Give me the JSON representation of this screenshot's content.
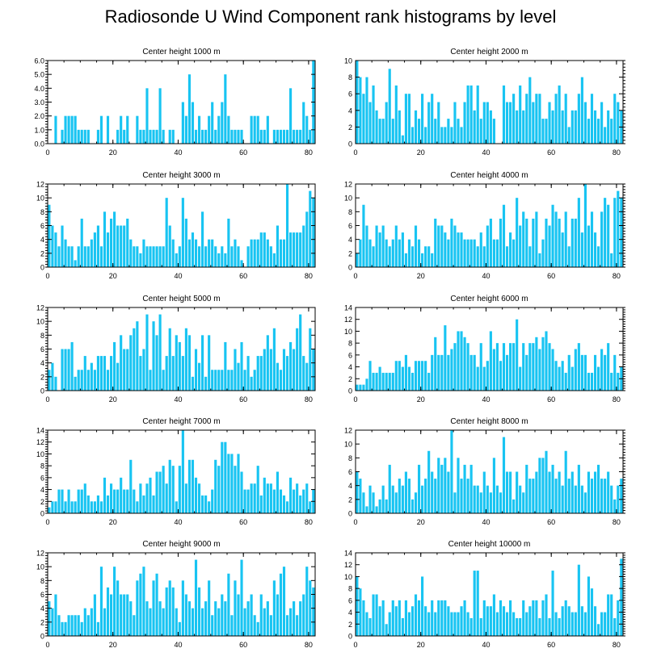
{
  "title": "Radiosonde U Wind Component rank histograms by level",
  "colors": {
    "bar": "#18C4F2",
    "axis": "#000000"
  },
  "chart_data": [
    {
      "type": "bar",
      "title": "Center height 1000 m",
      "xlim": [
        0,
        82
      ],
      "ylim": [
        0,
        6
      ],
      "yticks": [
        0,
        1,
        2,
        3,
        4,
        5,
        6
      ],
      "ytick_labels": [
        "0.0",
        "1.0",
        "2.0",
        "3.0",
        "4.0",
        "5.0",
        "6.0"
      ],
      "xticks": [
        0,
        20,
        40,
        60,
        80
      ],
      "tick_side": "left",
      "values": [
        0,
        0,
        2,
        0,
        1,
        2,
        2,
        2,
        2,
        1,
        1,
        1,
        1,
        0,
        0,
        1,
        2,
        0,
        2,
        0,
        0,
        1,
        2,
        1,
        2,
        0,
        0,
        2,
        1,
        1,
        4,
        1,
        1,
        1,
        4,
        1,
        0,
        1,
        1,
        0,
        0,
        3,
        2,
        5,
        3,
        1,
        2,
        1,
        1,
        2,
        3,
        1,
        2,
        3,
        5,
        2,
        1,
        1,
        1,
        1,
        0,
        0,
        2,
        2,
        2,
        1,
        1,
        2,
        0,
        1,
        1,
        1,
        1,
        1,
        4,
        1,
        1,
        1,
        3,
        2,
        1,
        6
      ]
    },
    {
      "type": "bar",
      "title": "Center height 2000 m",
      "xlim": [
        0,
        82
      ],
      "ylim": [
        0,
        10
      ],
      "yticks": [
        0,
        2,
        4,
        6,
        8,
        10
      ],
      "ytick_labels": [
        "0",
        "2",
        "4",
        "6",
        "8",
        "10"
      ],
      "xticks": [
        0,
        20,
        40,
        60,
        80
      ],
      "tick_side": "right",
      "values": [
        10,
        8,
        6,
        8,
        5,
        7,
        4,
        3,
        3,
        5,
        9,
        3,
        7,
        4,
        1,
        6,
        6,
        2,
        4,
        3,
        6,
        2,
        5,
        6,
        3,
        5,
        2,
        2,
        3,
        2,
        5,
        3,
        2,
        5,
        7,
        7,
        4,
        7,
        3,
        5,
        5,
        4,
        3,
        0,
        0,
        7,
        5,
        5,
        6,
        4,
        7,
        4,
        6,
        8,
        5,
        6,
        6,
        3,
        3,
        5,
        4,
        6,
        7,
        4,
        6,
        2,
        4,
        4,
        6,
        8,
        5,
        3,
        6,
        4,
        3,
        5,
        2,
        4,
        3,
        6,
        5,
        4
      ]
    },
    {
      "type": "bar",
      "title": "Center height 3000 m",
      "xlim": [
        0,
        82
      ],
      "ylim": [
        0,
        12
      ],
      "yticks": [
        0,
        2,
        4,
        6,
        8,
        10,
        12
      ],
      "ytick_labels": [
        "0",
        "2",
        "4",
        "6",
        "8",
        "10",
        "12"
      ],
      "xticks": [
        0,
        20,
        40,
        60,
        80
      ],
      "tick_side": "left",
      "values": [
        9,
        6,
        5,
        3,
        6,
        4,
        3,
        3,
        1,
        3,
        7,
        3,
        3,
        4,
        5,
        6,
        3,
        8,
        5,
        7,
        8,
        6,
        6,
        6,
        7,
        4,
        3,
        3,
        2,
        4,
        3,
        3,
        3,
        3,
        3,
        3,
        10,
        6,
        4,
        2,
        3,
        10,
        7,
        4,
        5,
        4,
        3,
        8,
        3,
        4,
        4,
        3,
        2,
        3,
        2,
        7,
        3,
        4,
        3,
        1,
        0,
        3,
        4,
        4,
        4,
        5,
        5,
        4,
        3,
        2,
        6,
        4,
        4,
        12,
        5,
        5,
        5,
        5,
        6,
        8,
        11,
        10
      ]
    },
    {
      "type": "bar",
      "title": "Center height 4000 m",
      "xlim": [
        0,
        82
      ],
      "ylim": [
        0,
        12
      ],
      "yticks": [
        0,
        2,
        4,
        6,
        8,
        10,
        12
      ],
      "ytick_labels": [
        "0",
        "2",
        "4",
        "6",
        "8",
        "10",
        "12"
      ],
      "xticks": [
        0,
        20,
        40,
        60,
        80
      ],
      "tick_side": "right",
      "values": [
        2,
        4,
        9,
        6,
        4,
        3,
        6,
        5,
        6,
        4,
        3,
        4,
        6,
        4,
        5,
        2,
        4,
        3,
        6,
        4,
        2,
        3,
        3,
        2,
        7,
        6,
        6,
        5,
        4,
        7,
        6,
        5,
        5,
        4,
        4,
        4,
        4,
        3,
        5,
        3,
        6,
        7,
        4,
        4,
        7,
        9,
        3,
        5,
        4,
        10,
        6,
        8,
        7,
        3,
        7,
        8,
        2,
        4,
        7,
        6,
        9,
        8,
        7,
        5,
        8,
        3,
        7,
        7,
        10,
        5,
        12,
        6,
        8,
        5,
        3,
        8,
        10,
        9,
        2,
        10,
        11,
        10
      ]
    },
    {
      "type": "bar",
      "title": "Center height 5000 m",
      "xlim": [
        0,
        82
      ],
      "ylim": [
        0,
        12
      ],
      "yticks": [
        0,
        2,
        4,
        6,
        8,
        10,
        12
      ],
      "ytick_labels": [
        "0",
        "2",
        "4",
        "6",
        "8",
        "10",
        "12"
      ],
      "xticks": [
        0,
        20,
        40,
        60,
        80
      ],
      "tick_side": "left",
      "values": [
        3,
        4,
        2,
        0,
        6,
        6,
        6,
        7,
        2,
        3,
        3,
        5,
        3,
        4,
        3,
        5,
        5,
        5,
        3,
        5,
        7,
        4,
        8,
        6,
        6,
        8,
        9,
        10,
        5,
        6,
        11,
        3,
        10,
        8,
        11,
        3,
        5,
        9,
        5,
        8,
        7,
        5,
        9,
        8,
        2,
        6,
        4,
        8,
        2,
        8,
        3,
        3,
        3,
        3,
        7,
        3,
        3,
        6,
        4,
        7,
        3,
        5,
        2,
        3,
        5,
        5,
        6,
        8,
        6,
        9,
        4,
        3,
        6,
        5,
        7,
        6,
        9,
        11,
        5,
        4,
        9,
        6
      ]
    },
    {
      "type": "bar",
      "title": "Center height 6000 m",
      "xlim": [
        0,
        82
      ],
      "ylim": [
        0,
        14
      ],
      "yticks": [
        0,
        2,
        4,
        6,
        8,
        10,
        12,
        14
      ],
      "ytick_labels": [
        "0",
        "2",
        "4",
        "6",
        "8",
        "10",
        "12",
        "14"
      ],
      "xticks": [
        0,
        20,
        40,
        60,
        80
      ],
      "tick_side": "right",
      "values": [
        1,
        1,
        1,
        2,
        5,
        3,
        3,
        4,
        3,
        3,
        3,
        3,
        5,
        5,
        4,
        6,
        4,
        3,
        5,
        5,
        5,
        5,
        3,
        6,
        9,
        6,
        6,
        11,
        6,
        7,
        8,
        10,
        10,
        9,
        8,
        6,
        6,
        4,
        8,
        4,
        5,
        10,
        7,
        8,
        5,
        8,
        6,
        8,
        8,
        12,
        4,
        8,
        6,
        8,
        8,
        9,
        7,
        9,
        10,
        8,
        7,
        5,
        4,
        5,
        3,
        6,
        4,
        7,
        8,
        6,
        6,
        3,
        3,
        6,
        4,
        7,
        6,
        8,
        3,
        6,
        3,
        4
      ]
    },
    {
      "type": "bar",
      "title": "Center height 7000 m",
      "xlim": [
        0,
        82
      ],
      "ylim": [
        0,
        14
      ],
      "yticks": [
        0,
        2,
        4,
        6,
        8,
        10,
        12,
        14
      ],
      "ytick_labels": [
        "0",
        "2",
        "4",
        "6",
        "8",
        "10",
        "12",
        "14"
      ],
      "xticks": [
        0,
        20,
        40,
        60,
        80
      ],
      "tick_side": "left",
      "values": [
        1,
        2,
        2,
        4,
        4,
        2,
        4,
        2,
        2,
        4,
        4,
        5,
        3,
        2,
        2,
        3,
        2,
        6,
        3,
        5,
        4,
        4,
        6,
        4,
        4,
        9,
        4,
        2,
        5,
        3,
        5,
        6,
        3,
        7,
        7,
        8,
        5,
        9,
        8,
        2,
        8,
        14,
        5,
        9,
        9,
        6,
        5,
        3,
        3,
        2,
        4,
        9,
        8,
        12,
        12,
        10,
        10,
        8,
        10,
        7,
        4,
        4,
        5,
        5,
        8,
        3,
        6,
        5,
        5,
        4,
        7,
        4,
        3,
        2,
        6,
        4,
        5,
        3,
        4,
        5,
        2,
        4
      ]
    },
    {
      "type": "bar",
      "title": "Center height 8000 m",
      "xlim": [
        0,
        82
      ],
      "ylim": [
        0,
        12
      ],
      "yticks": [
        0,
        2,
        4,
        6,
        8,
        10,
        12
      ],
      "ytick_labels": [
        "0",
        "2",
        "4",
        "6",
        "8",
        "10",
        "12"
      ],
      "xticks": [
        0,
        20,
        40,
        60,
        80
      ],
      "tick_side": "right",
      "values": [
        6,
        5,
        3,
        1,
        4,
        3,
        1,
        2,
        4,
        2,
        7,
        4,
        3,
        5,
        4,
        6,
        5,
        2,
        3,
        7,
        4,
        5,
        9,
        6,
        5,
        8,
        7,
        8,
        6,
        12,
        3,
        8,
        5,
        7,
        5,
        7,
        4,
        4,
        3,
        6,
        4,
        3,
        8,
        4,
        3,
        11,
        6,
        6,
        2,
        6,
        4,
        3,
        7,
        5,
        5,
        6,
        8,
        8,
        9,
        6,
        7,
        5,
        6,
        4,
        9,
        5,
        6,
        4,
        7,
        4,
        3,
        6,
        5,
        6,
        7,
        5,
        5,
        6,
        4,
        2,
        4,
        5
      ]
    },
    {
      "type": "bar",
      "title": "Center height 9000 m",
      "xlim": [
        0,
        82
      ],
      "ylim": [
        0,
        12
      ],
      "yticks": [
        0,
        2,
        4,
        6,
        8,
        10,
        12
      ],
      "ytick_labels": [
        "0",
        "2",
        "4",
        "6",
        "8",
        "10",
        "12"
      ],
      "xticks": [
        0,
        20,
        40,
        60,
        80
      ],
      "tick_side": "left",
      "values": [
        5,
        4,
        6,
        3,
        2,
        2,
        3,
        3,
        3,
        3,
        2,
        4,
        3,
        4,
        6,
        2,
        10,
        4,
        7,
        6,
        10,
        8,
        6,
        6,
        6,
        5,
        3,
        8,
        9,
        10,
        5,
        4,
        8,
        9,
        5,
        4,
        7,
        8,
        7,
        4,
        2,
        8,
        6,
        5,
        4,
        11,
        7,
        4,
        5,
        8,
        3,
        5,
        4,
        6,
        5,
        9,
        3,
        8,
        6,
        11,
        4,
        5,
        6,
        3,
        2,
        6,
        4,
        5,
        3,
        8,
        6,
        9,
        10,
        3,
        4,
        5,
        3,
        5,
        6,
        10,
        8,
        7
      ]
    },
    {
      "type": "bar",
      "title": "Center height 10000 m",
      "xlim": [
        0,
        82
      ],
      "ylim": [
        0,
        14
      ],
      "yticks": [
        0,
        2,
        4,
        6,
        8,
        10,
        12,
        14
      ],
      "ytick_labels": [
        "0",
        "2",
        "4",
        "6",
        "8",
        "10",
        "12",
        "14"
      ],
      "xticks": [
        0,
        20,
        40,
        60,
        80
      ],
      "tick_side": "right",
      "values": [
        10,
        8,
        6,
        4,
        3,
        7,
        7,
        5,
        6,
        2,
        4,
        6,
        5,
        6,
        3,
        6,
        4,
        5,
        7,
        6,
        10,
        5,
        4,
        6,
        4,
        6,
        6,
        6,
        5,
        4,
        4,
        4,
        5,
        6,
        4,
        3,
        11,
        11,
        3,
        6,
        5,
        5,
        7,
        4,
        6,
        5,
        4,
        6,
        4,
        3,
        3,
        6,
        4,
        5,
        6,
        6,
        3,
        6,
        7,
        3,
        11,
        4,
        3,
        5,
        6,
        5,
        4,
        4,
        12,
        5,
        4,
        10,
        8,
        5,
        2,
        4,
        4,
        7,
        7,
        3,
        6,
        13
      ]
    }
  ]
}
